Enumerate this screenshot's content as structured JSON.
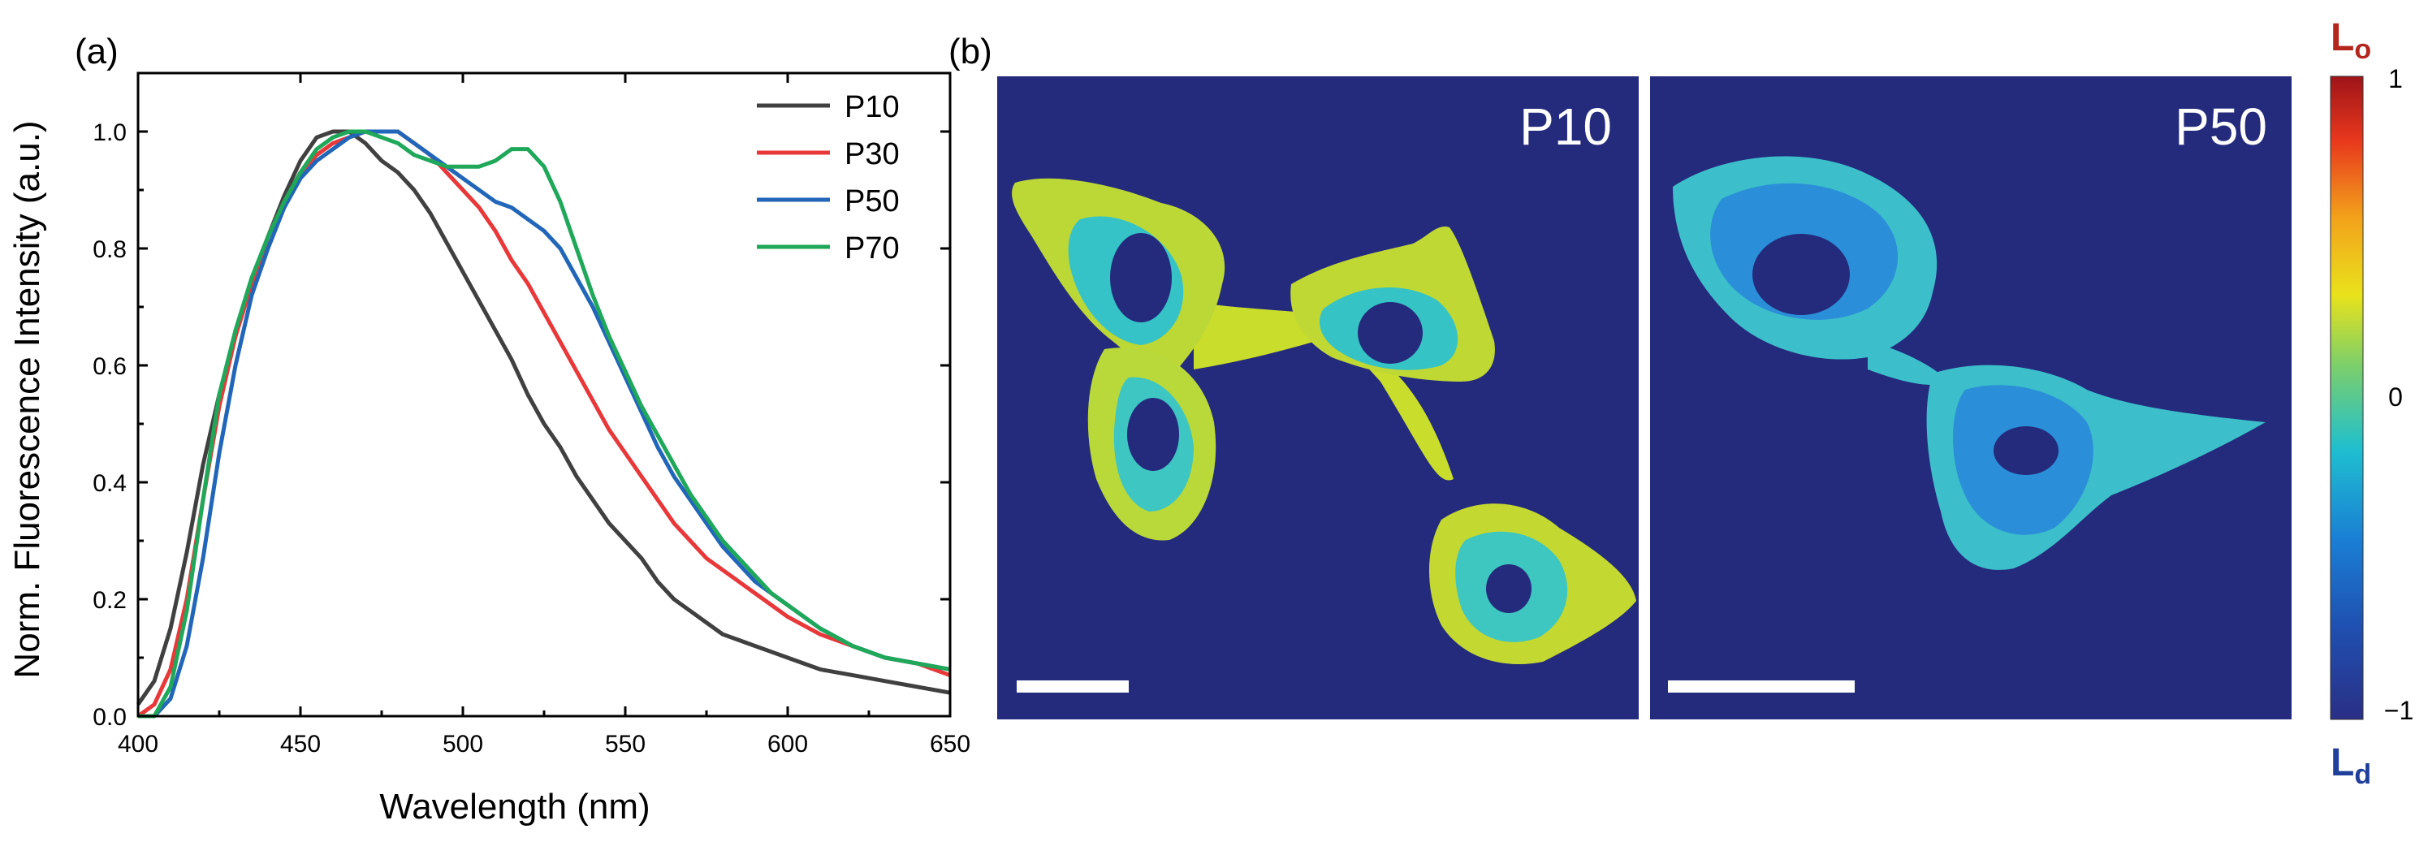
{
  "chart_data": [
    {
      "panel_label": "(a)",
      "type": "line",
      "xlabel": "Wavelength (nm)",
      "ylabel": "Norm. Fluorescence Intensity (a.u.)",
      "xlim": [
        400,
        650
      ],
      "ylim": [
        0,
        1.1
      ],
      "xticks": [
        "400",
        "450",
        "500",
        "550",
        "600",
        "650"
      ],
      "yticks": [
        "0.0",
        "0.2",
        "0.4",
        "0.6",
        "0.8",
        "1.0"
      ],
      "legend_position": "top-right",
      "grid": false,
      "series": [
        {
          "name": "P10",
          "color": "#404040",
          "x": [
            400,
            405,
            410,
            415,
            420,
            425,
            430,
            435,
            440,
            445,
            450,
            455,
            460,
            465,
            470,
            475,
            480,
            485,
            490,
            495,
            500,
            505,
            510,
            515,
            520,
            525,
            530,
            535,
            540,
            545,
            550,
            555,
            560,
            565,
            570,
            575,
            580,
            585,
            590,
            595,
            600,
            610,
            620,
            630,
            640,
            650
          ],
          "y": [
            0.02,
            0.06,
            0.15,
            0.28,
            0.43,
            0.55,
            0.65,
            0.74,
            0.82,
            0.89,
            0.95,
            0.99,
            1.0,
            1.0,
            0.98,
            0.95,
            0.93,
            0.9,
            0.86,
            0.81,
            0.76,
            0.71,
            0.66,
            0.61,
            0.55,
            0.5,
            0.46,
            0.41,
            0.37,
            0.33,
            0.3,
            0.27,
            0.23,
            0.2,
            0.18,
            0.16,
            0.14,
            0.13,
            0.12,
            0.11,
            0.1,
            0.08,
            0.07,
            0.06,
            0.05,
            0.04
          ]
        },
        {
          "name": "P30",
          "color": "#e8383a",
          "x": [
            400,
            405,
            410,
            415,
            420,
            425,
            430,
            435,
            440,
            445,
            450,
            455,
            460,
            465,
            470,
            475,
            480,
            485,
            490,
            495,
            500,
            505,
            510,
            515,
            520,
            525,
            530,
            535,
            540,
            545,
            550,
            555,
            560,
            565,
            570,
            575,
            580,
            585,
            590,
            595,
            600,
            610,
            620,
            630,
            640,
            650
          ],
          "y": [
            0.0,
            0.02,
            0.08,
            0.2,
            0.37,
            0.53,
            0.65,
            0.74,
            0.82,
            0.88,
            0.93,
            0.96,
            0.98,
            0.99,
            1.0,
            1.0,
            1.0,
            0.98,
            0.96,
            0.93,
            0.9,
            0.87,
            0.83,
            0.78,
            0.74,
            0.69,
            0.64,
            0.59,
            0.54,
            0.49,
            0.45,
            0.41,
            0.37,
            0.33,
            0.3,
            0.27,
            0.25,
            0.23,
            0.21,
            0.19,
            0.17,
            0.14,
            0.12,
            0.1,
            0.09,
            0.07
          ]
        },
        {
          "name": "P50",
          "color": "#2166b8",
          "x": [
            400,
            405,
            410,
            415,
            420,
            425,
            430,
            435,
            440,
            445,
            450,
            455,
            460,
            465,
            470,
            475,
            480,
            485,
            490,
            495,
            500,
            505,
            510,
            515,
            520,
            525,
            530,
            535,
            540,
            545,
            550,
            555,
            560,
            565,
            570,
            575,
            580,
            585,
            590,
            595,
            600,
            610,
            620,
            630,
            640,
            650
          ],
          "y": [
            0.0,
            0.0,
            0.03,
            0.12,
            0.27,
            0.45,
            0.6,
            0.72,
            0.8,
            0.87,
            0.92,
            0.95,
            0.97,
            0.99,
            1.0,
            1.0,
            1.0,
            0.98,
            0.96,
            0.94,
            0.92,
            0.9,
            0.88,
            0.87,
            0.85,
            0.83,
            0.8,
            0.75,
            0.7,
            0.64,
            0.58,
            0.52,
            0.46,
            0.41,
            0.37,
            0.33,
            0.29,
            0.26,
            0.23,
            0.21,
            0.19,
            0.15,
            0.12,
            0.1,
            0.09,
            0.08
          ]
        },
        {
          "name": "P70",
          "color": "#1fa85a",
          "x": [
            400,
            405,
            410,
            415,
            420,
            425,
            430,
            435,
            440,
            445,
            450,
            455,
            460,
            465,
            470,
            475,
            480,
            485,
            490,
            495,
            500,
            505,
            510,
            515,
            520,
            525,
            530,
            535,
            540,
            545,
            550,
            555,
            560,
            565,
            570,
            575,
            580,
            585,
            590,
            595,
            600,
            610,
            620,
            630,
            640,
            650
          ],
          "y": [
            0.0,
            0.0,
            0.05,
            0.18,
            0.37,
            0.55,
            0.66,
            0.75,
            0.82,
            0.88,
            0.93,
            0.97,
            0.99,
            1.0,
            1.0,
            0.99,
            0.98,
            0.96,
            0.95,
            0.94,
            0.94,
            0.94,
            0.95,
            0.97,
            0.97,
            0.94,
            0.88,
            0.8,
            0.72,
            0.65,
            0.59,
            0.53,
            0.48,
            0.43,
            0.38,
            0.34,
            0.3,
            0.27,
            0.24,
            0.21,
            0.19,
            0.15,
            0.12,
            0.1,
            0.09,
            0.08
          ]
        }
      ]
    },
    {
      "panel_label": "(b)",
      "type": "heatmap",
      "images": [
        "P10",
        "P50"
      ],
      "colorbar": {
        "range": [
          -1,
          1
        ],
        "tick_labels": [
          "1",
          "0",
          "−1"
        ],
        "tick_values": [
          1,
          0,
          -1
        ],
        "top_label": "L",
        "top_label_sub": "o",
        "bottom_label": "L",
        "bottom_label_sub": "d",
        "top_label_color": "#b3261e",
        "bottom_label_color": "#1f3f9a",
        "colors": [
          "#2a2f85",
          "#1f4fb0",
          "#1a7fd4",
          "#1fbfd0",
          "#7ccf6a",
          "#e9e21b",
          "#f3a21b",
          "#e8381d",
          "#9e1418"
        ]
      },
      "background_color": "#242a7c",
      "scale_bar_color": "#ffffff"
    }
  ]
}
